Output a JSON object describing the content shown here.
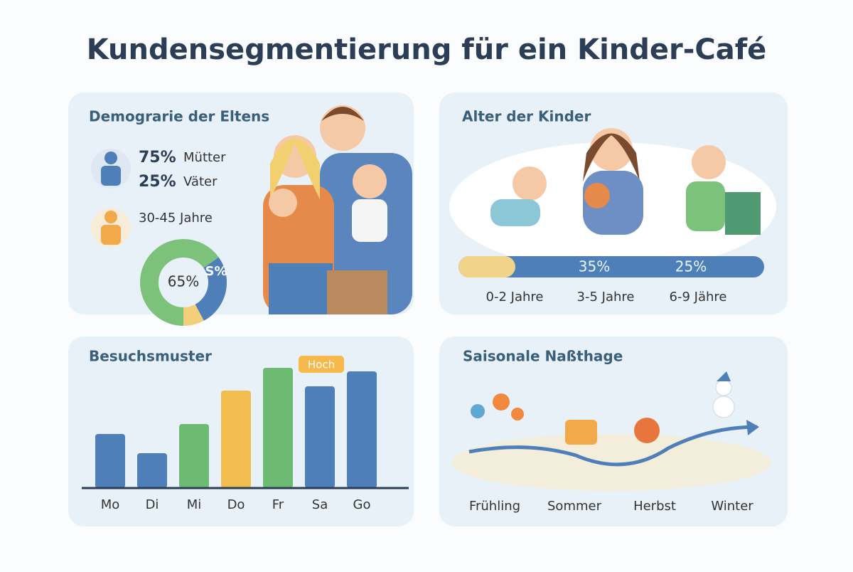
{
  "title": "Kundensegmentierung für ein Kinder-Café",
  "demographics": {
    "title": "Demograrie der Eltens",
    "mothers_pct": "75%",
    "mothers": "Mütter",
    "fathers_pct": "25%",
    "fathers": "Väter",
    "age": "30-45 Jahre",
    "donut": {
      "segments": [
        {
          "value": 65,
          "color": "#7cc27a"
        },
        {
          "value": 27,
          "color": "#4f7fb8"
        },
        {
          "value": 8,
          "color": "#f2cf7a"
        }
      ],
      "center_label": "65%",
      "side_label": "S%"
    }
  },
  "kids": {
    "title": "Alter der Kinder",
    "bar_labels": [
      "35%",
      "25%"
    ],
    "groups": [
      "0-2 Jahre",
      "3-5 Jahre",
      "6-9 Jähre"
    ]
  },
  "visits": {
    "title": "Besuchsmuster",
    "badge": "Hoch",
    "days": [
      "Mo",
      "Di",
      "Mi",
      "Do",
      "Fr",
      "Sa",
      "Go"
    ],
    "values": [
      76,
      49,
      90,
      137,
      169,
      143,
      164
    ],
    "colors": [
      "#4f7fb8",
      "#4f7fb8",
      "#6dbb73",
      "#f2bd4f",
      "#6dbb73",
      "#4f7fb8",
      "#4f7fb8"
    ]
  },
  "seasons": {
    "title": "Saisonale Naßthage",
    "labels": [
      "Frühling",
      "Sommer",
      "Herbst",
      "Winter"
    ]
  }
}
